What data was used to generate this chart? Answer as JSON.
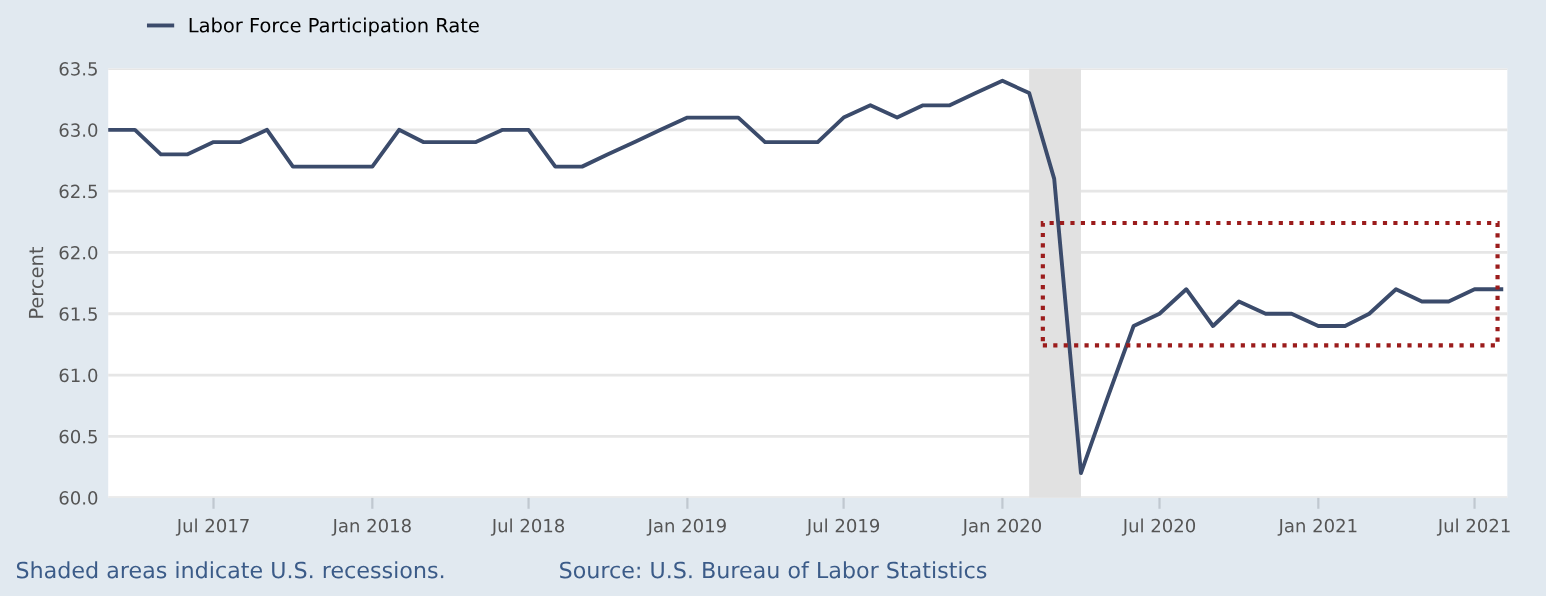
{
  "chart_data": {
    "type": "line",
    "x": [
      "2017-03",
      "2017-04",
      "2017-05",
      "2017-06",
      "2017-07",
      "2017-08",
      "2017-09",
      "2017-10",
      "2017-11",
      "2017-12",
      "2018-01",
      "2018-02",
      "2018-03",
      "2018-04",
      "2018-05",
      "2018-06",
      "2018-07",
      "2018-08",
      "2018-09",
      "2018-10",
      "2018-11",
      "2018-12",
      "2019-01",
      "2019-02",
      "2019-03",
      "2019-04",
      "2019-05",
      "2019-06",
      "2019-07",
      "2019-08",
      "2019-09",
      "2019-10",
      "2019-11",
      "2019-12",
      "2020-01",
      "2020-02",
      "2020-03",
      "2020-04",
      "2020-05",
      "2020-06",
      "2020-07",
      "2020-08",
      "2020-09",
      "2020-10",
      "2020-11",
      "2020-12",
      "2021-01",
      "2021-02",
      "2021-03",
      "2021-04",
      "2021-05",
      "2021-06",
      "2021-07",
      "2021-08"
    ],
    "series": [
      {
        "name": "Labor Force Participation Rate",
        "color": "#3b4b6b",
        "values": [
          63.0,
          63.0,
          62.8,
          62.8,
          62.9,
          62.9,
          63.0,
          62.7,
          62.7,
          62.7,
          62.7,
          63.0,
          62.9,
          62.9,
          62.9,
          63.0,
          63.0,
          62.7,
          62.7,
          62.8,
          62.9,
          63.0,
          63.1,
          63.1,
          63.1,
          62.9,
          62.9,
          62.9,
          63.1,
          63.2,
          63.1,
          63.2,
          63.2,
          63.3,
          63.4,
          63.3,
          62.6,
          60.2,
          60.8,
          61.4,
          61.5,
          61.7,
          61.4,
          61.6,
          61.5,
          61.5,
          61.4,
          61.4,
          61.5,
          61.7,
          61.6,
          61.6,
          61.7,
          61.7
        ]
      }
    ],
    "ylabel": "Percent",
    "xlim": [
      "2017-03",
      "2021-08-08"
    ],
    "xticks": [
      {
        "value": "2017-07",
        "label": "Jul 2017"
      },
      {
        "value": "2018-01",
        "label": "Jan 2018"
      },
      {
        "value": "2018-07",
        "label": "Jul 2018"
      },
      {
        "value": "2019-01",
        "label": "Jan 2019"
      },
      {
        "value": "2019-07",
        "label": "Jul 2019"
      },
      {
        "value": "2020-01",
        "label": "Jan 2020"
      },
      {
        "value": "2020-07",
        "label": "Jul 2020"
      },
      {
        "value": "2021-01",
        "label": "Jan 2021"
      },
      {
        "value": "2021-07",
        "label": "Jul 2021"
      }
    ],
    "ylim": [
      60,
      63.5
    ],
    "yticks": [
      {
        "value": 60,
        "label": "60.0"
      },
      {
        "value": 60.5,
        "label": "60.5"
      },
      {
        "value": 61,
        "label": "61.0"
      },
      {
        "value": 61.5,
        "label": "61.5"
      },
      {
        "value": 62,
        "label": "62.0"
      },
      {
        "value": 62.5,
        "label": "62.5"
      },
      {
        "value": 63,
        "label": "63.0"
      },
      {
        "value": 63.5,
        "label": "63.5"
      }
    ],
    "bands": [
      {
        "axis": "x",
        "from": "2020-02",
        "to": "2020-04",
        "color": "#e1e1e1"
      }
    ],
    "grid": "y",
    "legend": "top left",
    "annotations": [
      "Shaded areas indicate U.S. recessions.",
      "Source: U.S. Bureau of Labor Statistics"
    ]
  }
}
